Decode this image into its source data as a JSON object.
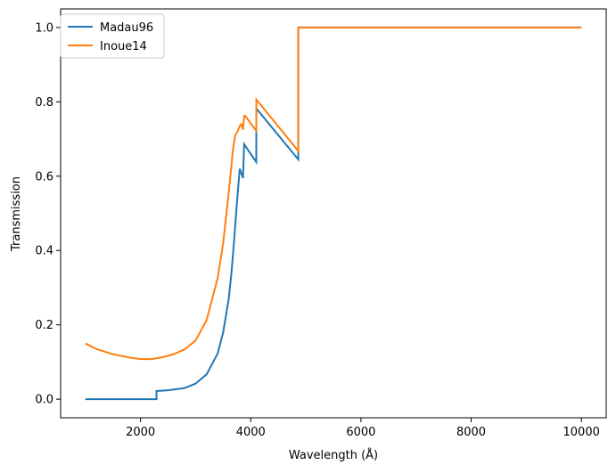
{
  "chart_data": {
    "type": "line",
    "xlabel": "Wavelength (Å)",
    "ylabel": "Transmission",
    "xlim": [
      550,
      10450
    ],
    "ylim": [
      -0.05,
      1.05
    ],
    "x_ticks": [
      2000,
      4000,
      6000,
      8000,
      10000
    ],
    "x_tick_labels": [
      "2000",
      "4000",
      "6000",
      "8000",
      "10000"
    ],
    "y_ticks": [
      0.0,
      0.2,
      0.4,
      0.6,
      0.8,
      1.0
    ],
    "y_tick_labels": [
      "0.0",
      "0.2",
      "0.4",
      "0.6",
      "0.8",
      "1.0"
    ],
    "grid": false,
    "legend_position": "top-left",
    "series": [
      {
        "name": "Madau96",
        "color": "#1f77b4",
        "x": [
          1000,
          1500,
          2000,
          2290,
          2290,
          2500,
          2800,
          3000,
          3200,
          3400,
          3500,
          3600,
          3650,
          3700,
          3750,
          3800,
          3860,
          3880,
          4100,
          4102,
          4862,
          4862,
          10000
        ],
        "y": [
          0.0,
          0.0,
          0.0,
          0.0,
          0.022,
          0.024,
          0.03,
          0.042,
          0.067,
          0.123,
          0.18,
          0.27,
          0.34,
          0.43,
          0.53,
          0.62,
          0.595,
          0.686,
          0.638,
          0.782,
          0.645,
          1.0,
          1.0
        ]
      },
      {
        "name": "Inoue14",
        "color": "#ff7f0e",
        "x": [
          1000,
          1200,
          1500,
          1800,
          2000,
          2200,
          2400,
          2600,
          2800,
          3000,
          3200,
          3400,
          3500,
          3600,
          3650,
          3680,
          3720,
          3760,
          3800,
          3830,
          3860,
          3880,
          3900,
          4100,
          4102,
          4862,
          4862,
          10000
        ],
        "y": [
          0.15,
          0.135,
          0.121,
          0.112,
          0.108,
          0.108,
          0.113,
          0.121,
          0.134,
          0.158,
          0.213,
          0.326,
          0.42,
          0.555,
          0.63,
          0.675,
          0.71,
          0.72,
          0.735,
          0.74,
          0.725,
          0.762,
          0.762,
          0.722,
          0.806,
          0.668,
          1.0,
          1.0
        ]
      }
    ]
  }
}
